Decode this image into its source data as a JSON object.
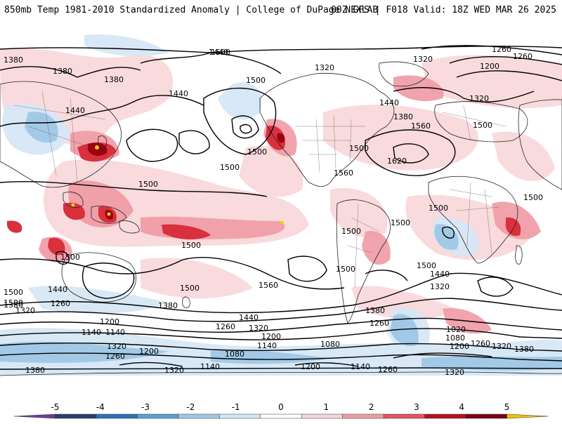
{
  "header": {
    "title_left": "850mb Temp 1981-2010 Standardized Anomaly | College of DuPage NEXLAB",
    "title_right": "00Z GFS | F018 Valid: 18Z WED MAR 26 2025"
  },
  "contour_labels": [
    "1380",
    "1380",
    "1440",
    "1500",
    "1320",
    "1380",
    "1260",
    "1200",
    "1440",
    "1500",
    "1440",
    "1320",
    "1260",
    "1320",
    "1380",
    "1560",
    "1500",
    "1500",
    "1500",
    "1560",
    "1620",
    "1500",
    "1500",
    "1500",
    "1500",
    "1500",
    "1440",
    "1500",
    "1500",
    "1500",
    "1500",
    "1500",
    "1500",
    "1560",
    "1500",
    "1440",
    "1320",
    "1380",
    "1260",
    "1020",
    "1080",
    "1200",
    "1260",
    "1320",
    "1380",
    "1500",
    "1440",
    "1380",
    "1320",
    "1260",
    "1380",
    "1440",
    "1320",
    "1260",
    "1200",
    "1140",
    "1140",
    "1080",
    "1140",
    "1200",
    "1260",
    "1200",
    "1320",
    "1380",
    "1320",
    "1140",
    "1200",
    "1140",
    "1260",
    "1320",
    "1080"
  ],
  "colorbar": {
    "ticks": [
      "-5",
      "-4",
      "-3",
      "-2",
      "-1",
      "0",
      "1",
      "2",
      "3",
      "4",
      "5"
    ],
    "colors": [
      "#6a3d9a",
      "#27406b",
      "#3070b8",
      "#5aa0d8",
      "#9fc8e8",
      "#d4e6f4",
      "#ffffff",
      "#f7d5d8",
      "#ee9ea6",
      "#e05561",
      "#b8101e",
      "#7a0010",
      "#f5c000"
    ]
  },
  "anomaly_colors": {
    "warm_light": "#f9d9dc",
    "warm_med": "#ef9aa4",
    "warm_strong": "#d9303d",
    "warm_extreme": "#9a0010",
    "yellow": "#f5d000",
    "cool_light": "#d6e7f5",
    "cool_med": "#9cc6e6",
    "cool_strong": "#4f8fcc"
  }
}
